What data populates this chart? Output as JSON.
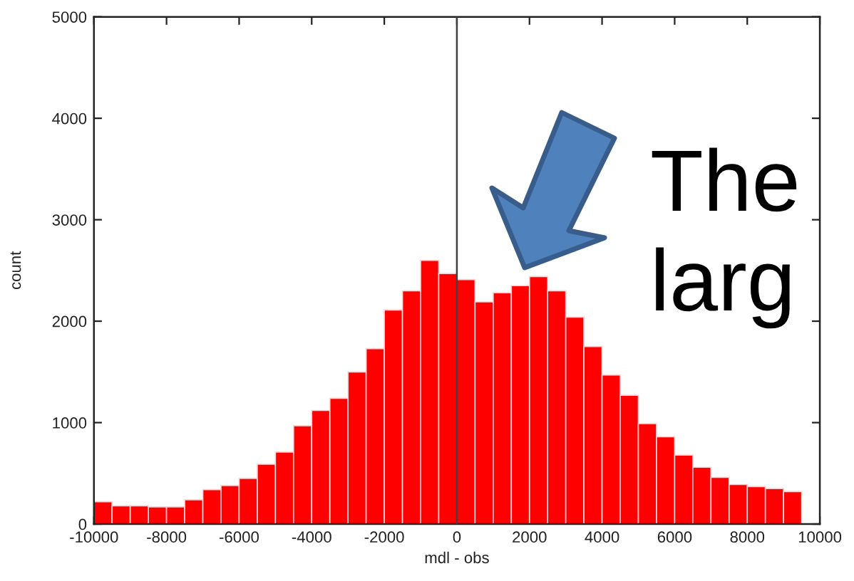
{
  "chart_data": {
    "type": "histogram",
    "xlabel": "mdl - obs",
    "ylabel": "count",
    "bins": [
      -10000,
      -9500,
      -9000,
      -8500,
      -8000,
      -7500,
      -7000,
      -6500,
      -6000,
      -5500,
      -5000,
      -4500,
      -4000,
      -3500,
      -3000,
      -2500,
      -2000,
      -1500,
      -1000,
      -500,
      0,
      500,
      1000,
      1500,
      2000,
      2500,
      3000,
      3500,
      4000,
      4500,
      5000,
      5500,
      6000,
      6500,
      7000,
      7500,
      8000,
      8500,
      9000,
      9500
    ],
    "values": [
      220,
      180,
      180,
      170,
      170,
      240,
      340,
      380,
      450,
      590,
      710,
      970,
      1120,
      1240,
      1500,
      1730,
      2110,
      2300,
      2600,
      2470,
      2410,
      2190,
      2280,
      2350,
      2440,
      2300,
      2040,
      1750,
      1470,
      1270,
      990,
      860,
      680,
      560,
      460,
      390,
      370,
      350,
      320
    ],
    "color": "#ff0000",
    "xlim": [
      -10000,
      10000
    ],
    "ylim": [
      0,
      5000
    ],
    "xticks": [
      -10000,
      -8000,
      -6000,
      -4000,
      -2000,
      0,
      2000,
      4000,
      6000,
      8000,
      10000
    ],
    "yticks": [
      0,
      1000,
      2000,
      3000,
      4000,
      5000
    ],
    "ref_lines": [
      {
        "axis": "x",
        "value": 0,
        "color": "#404040"
      }
    ],
    "annotations": [
      "The",
      "larg"
    ]
  }
}
